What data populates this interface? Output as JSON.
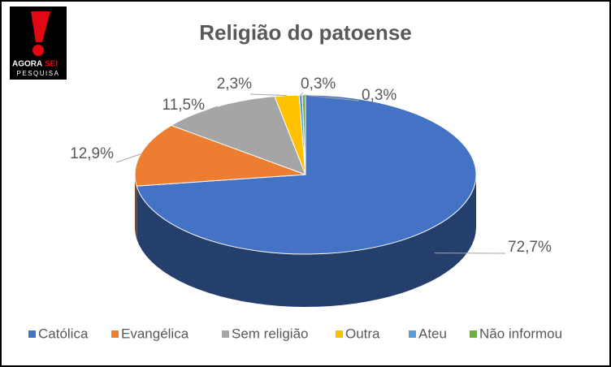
{
  "logo": {
    "brand": "AGORA",
    "brand_accent": "SEI",
    "tagline": "PESQUISA"
  },
  "chart_data": {
    "type": "pie",
    "title": "Religião do patoense",
    "categories": [
      "Católica",
      "Evangélica",
      "Sem religião",
      "Outra",
      "Ateu",
      "Não informou"
    ],
    "values": [
      72.7,
      12.9,
      11.5,
      2.3,
      0.3,
      0.3
    ],
    "value_labels": [
      "72,7%",
      "12,9%",
      "11,5%",
      "2,3%",
      "0,3%",
      "0,3%"
    ],
    "colors": [
      "#4472c4",
      "#ed7d31",
      "#a5a5a5",
      "#ffc000",
      "#5b9bd5",
      "#70ad47"
    ],
    "legend": "bottom"
  }
}
